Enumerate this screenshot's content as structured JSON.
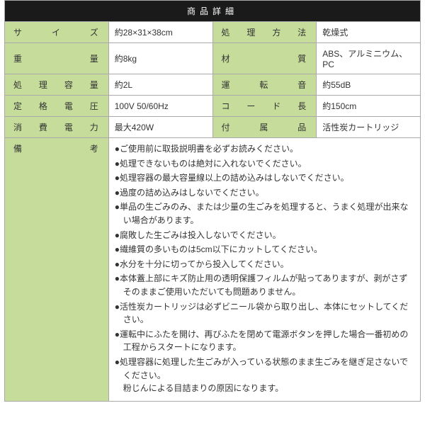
{
  "header": "商品詳細",
  "rows": [
    {
      "l1": "サイズ",
      "v1": "約28×31×38cm",
      "l2": "処理方法",
      "v2": "乾燥式"
    },
    {
      "l1": "重 量",
      "v1": "約8kg",
      "l2": "材 質",
      "v2": "ABS、アルミニウム、PC"
    },
    {
      "l1": "処理容量",
      "v1": "約2L",
      "l2": "運転音",
      "v2": "約55dB"
    },
    {
      "l1": "定格電圧",
      "v1": "100V 50/60Hz",
      "l2": "コード長",
      "v2": "約150cm"
    },
    {
      "l1": "消費電力",
      "v1": "最大420W",
      "l2": "付属品",
      "v2": "活性炭カートリッジ"
    }
  ],
  "remarks_label": "備 考",
  "notes": [
    "●ご使用前に取扱説明書を必ずお読みください。",
    "●処理できないものは絶対に入れないでください。",
    "●処理容器の最大容量線以上の詰め込みはしないでください。",
    "●過度の詰め込みはしないでください。",
    "●単品の生ごみのみ、または少量の生ごみを処理すると、うまく処理が出来ない場合があります。",
    "●腐敗した生ごみは投入しないでください。",
    "●繊維質の多いものは5cm以下にカットしてください。",
    "●水分を十分に切ってから投入してください。",
    "●本体蓋上部にキズ防止用の透明保護フィルムが貼ってありますが、剥がさずそのままご使用いただいても問題ありません。",
    "●活性炭カートリッジは必ずビニール袋から取り出し、本体にセットしてください。",
    "●運転中にふたを開け、再びふたを閉めて電源ボタンを押した場合一番初めの工程からスタートになります。",
    "●処理容器に処理した生ごみが入っている状態のまま生ごみを継ぎ足さないでください。\n粉じんによる目詰まりの原因になります。"
  ],
  "colors": {
    "header_bg": "#1a1a1a",
    "label_bg": "#c5dc9a",
    "border": "#aaaaaa",
    "text": "#333333"
  }
}
